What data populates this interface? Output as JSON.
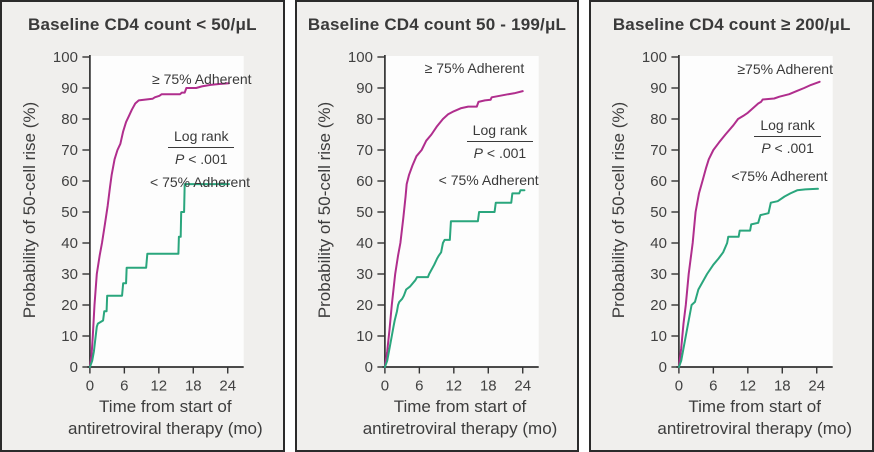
{
  "colors": {
    "adherent_ge75_line": "#b02e8d",
    "adherent_lt75_line": "#2aa67d",
    "panel_background": "#f0efed",
    "plot_background": "#fdfdfd",
    "panel_border": "#2b2b2b",
    "axis": "#333333",
    "text": "#3b3b3b"
  },
  "chart_data": [
    {
      "type": "line",
      "title": "Baseline CD4 count < 50/μL",
      "xlabel": "Time from start of antiretroviral therapy (mo)",
      "xlabel_line1": "Time from start of",
      "xlabel_line2": "antiretroviral therapy (mo)",
      "ylabel": "Probability of 50-cell rise (%)",
      "xlim": [
        0,
        27
      ],
      "ylim": [
        0,
        100
      ],
      "xticks": [
        0,
        6,
        12,
        18,
        24
      ],
      "yticks": [
        0,
        10,
        20,
        30,
        40,
        50,
        60,
        70,
        80,
        90,
        100
      ],
      "legend_ge75": "≥ 75% Adherent",
      "legend_lt75": "< 75% Adherent",
      "logrank_line1": "Log rank",
      "logrank_p": "P",
      "logrank_rest": " < .001",
      "grid": false,
      "series": [
        {
          "name": "≥ 75% Adherent",
          "color": "#b02e8d",
          "points": [
            [
              0,
              0
            ],
            [
              0.3,
              4
            ],
            [
              0.5,
              10
            ],
            [
              0.8,
              20
            ],
            [
              1.2,
              30
            ],
            [
              1.7,
              36
            ],
            [
              2.1,
              40
            ],
            [
              2.6,
              46
            ],
            [
              3.1,
              52
            ],
            [
              3.5,
              58
            ],
            [
              3.8,
              62
            ],
            [
              4.3,
              67
            ],
            [
              4.8,
              70
            ],
            [
              5.3,
              72
            ],
            [
              5.8,
              76
            ],
            [
              6.3,
              79
            ],
            [
              6.8,
              81
            ],
            [
              7.3,
              83
            ],
            [
              7.9,
              85
            ],
            [
              8.5,
              86
            ],
            [
              10.9,
              86.5
            ],
            [
              11.3,
              87
            ],
            [
              12.1,
              87.5
            ],
            [
              12.5,
              88
            ],
            [
              15.7,
              88
            ],
            [
              16,
              88.5
            ],
            [
              16.5,
              88.5
            ],
            [
              16.8,
              90
            ],
            [
              18.5,
              90
            ],
            [
              19.5,
              90.5
            ],
            [
              21,
              91
            ],
            [
              22.5,
              91.3
            ],
            [
              24.2,
              91.5
            ]
          ]
        },
        {
          "name": "< 75% Adherent",
          "color": "#2aa67d",
          "points": [
            [
              0,
              0
            ],
            [
              0.4,
              2
            ],
            [
              0.7,
              5
            ],
            [
              1,
              10
            ],
            [
              1.2,
              13
            ],
            [
              1.4,
              14
            ],
            [
              2.3,
              15
            ],
            [
              2.5,
              18
            ],
            [
              2.9,
              18
            ],
            [
              3,
              23
            ],
            [
              5.6,
              23
            ],
            [
              5.8,
              27
            ],
            [
              6.3,
              27
            ],
            [
              6.4,
              32
            ],
            [
              9.8,
              32
            ],
            [
              10,
              36.5
            ],
            [
              15.4,
              36.5
            ],
            [
              15.5,
              42
            ],
            [
              15.8,
              42
            ],
            [
              15.9,
              50
            ],
            [
              16.4,
              50
            ],
            [
              16.5,
              59
            ],
            [
              24.2,
              59
            ]
          ]
        }
      ]
    },
    {
      "type": "line",
      "title": "Baseline CD4 count 50 - 199/μL",
      "xlabel": "Time from start of antiretroviral therapy (mo)",
      "xlabel_line1": "Time from start of",
      "xlabel_line2": "antiretroviral therapy (mo)",
      "ylabel": "Probability of 50-cell rise (%)",
      "xlim": [
        0,
        27
      ],
      "ylim": [
        0,
        100
      ],
      "xticks": [
        0,
        6,
        12,
        18,
        24
      ],
      "yticks": [
        0,
        10,
        20,
        30,
        40,
        50,
        60,
        70,
        80,
        90,
        100
      ],
      "legend_ge75": "≥ 75% Adherent",
      "legend_lt75": "< 75% Adherent",
      "logrank_line1": "Log rank",
      "logrank_p": "P",
      "logrank_rest": " < .001",
      "grid": false,
      "series": [
        {
          "name": "≥ 75% Adherent",
          "color": "#b02e8d",
          "points": [
            [
              0,
              0
            ],
            [
              0.4,
              5
            ],
            [
              0.8,
              12
            ],
            [
              1.2,
              20
            ],
            [
              1.8,
              30
            ],
            [
              2.3,
              36
            ],
            [
              2.7,
              40
            ],
            [
              3.2,
              48
            ],
            [
              3.6,
              55
            ],
            [
              3.8,
              59
            ],
            [
              4.2,
              62
            ],
            [
              4.8,
              65
            ],
            [
              5.5,
              68
            ],
            [
              6.4,
              70
            ],
            [
              7.2,
              73
            ],
            [
              8.1,
              75
            ],
            [
              9,
              77.5
            ],
            [
              10.1,
              80
            ],
            [
              11,
              81.5
            ],
            [
              12,
              82.5
            ],
            [
              13.3,
              83.5
            ],
            [
              14.5,
              84
            ],
            [
              16,
              84
            ],
            [
              16.3,
              85.5
            ],
            [
              17.4,
              86
            ],
            [
              18.4,
              86.2
            ],
            [
              18.6,
              87
            ],
            [
              20,
              87.5
            ],
            [
              21.5,
              88
            ],
            [
              22.5,
              88.3
            ],
            [
              24,
              89
            ]
          ]
        },
        {
          "name": "< 75% Adherent",
          "color": "#2aa67d",
          "points": [
            [
              0,
              0
            ],
            [
              0.4,
              2
            ],
            [
              0.8,
              6
            ],
            [
              1.2,
              10
            ],
            [
              1.5,
              13
            ],
            [
              1.7,
              15
            ],
            [
              2.1,
              18
            ],
            [
              2.3,
              20
            ],
            [
              2.5,
              21
            ],
            [
              3,
              22
            ],
            [
              3.3,
              23
            ],
            [
              3.7,
              25
            ],
            [
              4.4,
              26
            ],
            [
              5.3,
              28
            ],
            [
              5.6,
              29
            ],
            [
              7.5,
              29
            ],
            [
              7.7,
              30
            ],
            [
              8.6,
              33
            ],
            [
              9.1,
              35
            ],
            [
              9.4,
              36
            ],
            [
              9.8,
              37
            ],
            [
              10.1,
              40
            ],
            [
              10.4,
              41
            ],
            [
              11.3,
              41
            ],
            [
              11.5,
              47
            ],
            [
              16.2,
              47
            ],
            [
              16.4,
              50
            ],
            [
              19.1,
              50
            ],
            [
              19.3,
              53
            ],
            [
              22,
              53
            ],
            [
              22.2,
              56
            ],
            [
              23.4,
              56
            ],
            [
              23.6,
              57
            ],
            [
              24.3,
              57
            ]
          ]
        }
      ]
    },
    {
      "type": "line",
      "title": "Baseline CD4 count ≥ 200/μL",
      "xlabel": "Time from start of antiretroviral therapy (mo)",
      "xlabel_line1": "Time from start of",
      "xlabel_line2": "antiretroviral therapy (mo)",
      "ylabel": "Probability of 50-cell rise (%)",
      "xlim": [
        0,
        27
      ],
      "ylim": [
        0,
        100
      ],
      "xticks": [
        0,
        6,
        12,
        18,
        24
      ],
      "yticks": [
        0,
        10,
        20,
        30,
        40,
        50,
        60,
        70,
        80,
        90,
        100
      ],
      "legend_ge75": "≥75% Adherent",
      "legend_lt75": "<75% Adherent",
      "logrank_line1": "Log rank",
      "logrank_p": "P",
      "logrank_rest": " < .001",
      "grid": false,
      "series": [
        {
          "name": "≥75% Adherent",
          "color": "#b02e8d",
          "points": [
            [
              0,
              0
            ],
            [
              0.4,
              6
            ],
            [
              0.8,
              14
            ],
            [
              1.2,
              20
            ],
            [
              1.7,
              30
            ],
            [
              2.4,
              40
            ],
            [
              2.9,
              50
            ],
            [
              3.5,
              56
            ],
            [
              4.1,
              60
            ],
            [
              4.7,
              64
            ],
            [
              5.2,
              67
            ],
            [
              6,
              70
            ],
            [
              7,
              72.5
            ],
            [
              8.1,
              75
            ],
            [
              9.5,
              78
            ],
            [
              10.3,
              80
            ],
            [
              11.2,
              81
            ],
            [
              12,
              82
            ],
            [
              13.2,
              84
            ],
            [
              13.8,
              85
            ],
            [
              14.3,
              85.5
            ],
            [
              14.6,
              86.3
            ],
            [
              16.6,
              86.6
            ],
            [
              17.5,
              87.2
            ],
            [
              19.2,
              88
            ],
            [
              20.5,
              89
            ],
            [
              21.8,
              90
            ],
            [
              23,
              91
            ],
            [
              24.5,
              92
            ]
          ]
        },
        {
          "name": "<75% Adherent",
          "color": "#2aa67d",
          "points": [
            [
              0,
              0
            ],
            [
              0.4,
              2
            ],
            [
              0.8,
              6
            ],
            [
              1.2,
              10
            ],
            [
              1.7,
              15
            ],
            [
              2.2,
              20
            ],
            [
              2.8,
              21
            ],
            [
              3.4,
              25
            ],
            [
              4.3,
              28
            ],
            [
              4.9,
              30
            ],
            [
              6,
              33
            ],
            [
              6.9,
              35
            ],
            [
              7.7,
              37
            ],
            [
              8.4,
              40
            ],
            [
              8.6,
              42
            ],
            [
              10.4,
              42
            ],
            [
              10.6,
              44
            ],
            [
              12.4,
              44
            ],
            [
              12.6,
              46
            ],
            [
              13.8,
              46.5
            ],
            [
              14.2,
              49
            ],
            [
              15.6,
              49.6
            ],
            [
              16,
              53
            ],
            [
              17.2,
              53.5
            ],
            [
              18.4,
              55
            ],
            [
              19.4,
              56
            ],
            [
              20.6,
              57
            ],
            [
              22,
              57.3
            ],
            [
              24.2,
              57.5
            ]
          ]
        }
      ]
    }
  ]
}
